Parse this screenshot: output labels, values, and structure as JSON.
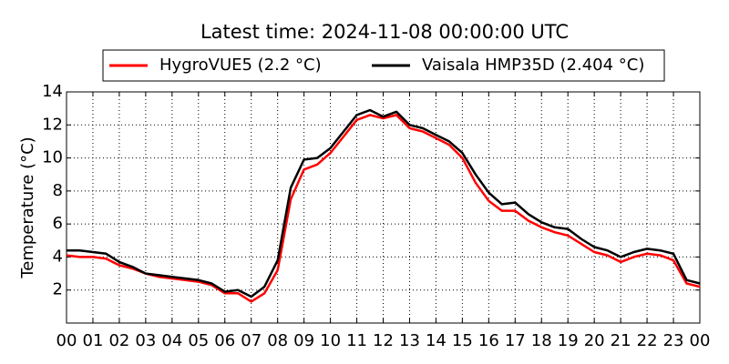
{
  "chart_data": {
    "type": "line",
    "title": "Latest time: 2024-11-08 00:00:00 UTC",
    "y_label": "Temperature (°C)",
    "x": [
      0,
      0.5,
      1,
      1.5,
      2,
      2.5,
      3,
      3.5,
      4,
      4.5,
      5,
      5.5,
      6,
      6.5,
      7,
      7.5,
      8,
      8.5,
      9,
      9.5,
      10,
      10.5,
      11,
      11.5,
      12,
      12.5,
      13,
      13.5,
      14,
      14.5,
      15,
      15.5,
      16,
      16.5,
      17,
      17.5,
      18,
      18.5,
      19,
      19.5,
      20,
      20.5,
      21,
      21.5,
      22,
      22.5,
      23,
      23.5,
      24
    ],
    "series": [
      {
        "name": "HygroVUE5 (2.2 °C)",
        "color": "#ff0000",
        "values": [
          4.1,
          4.0,
          4.0,
          3.9,
          3.5,
          3.3,
          3.0,
          2.8,
          2.7,
          2.6,
          2.5,
          2.3,
          1.8,
          1.8,
          1.3,
          1.8,
          3.2,
          7.5,
          9.3,
          9.6,
          10.3,
          11.3,
          12.3,
          12.6,
          12.4,
          12.6,
          11.8,
          11.6,
          11.2,
          10.8,
          10.0,
          8.5,
          7.4,
          6.8,
          6.8,
          6.2,
          5.8,
          5.5,
          5.3,
          4.8,
          4.3,
          4.1,
          3.7,
          4.0,
          4.2,
          4.1,
          3.8,
          2.4,
          2.2
        ]
      },
      {
        "name": "Vaisala HMP35D (2.404 °C)",
        "color": "#000000",
        "values": [
          4.4,
          4.4,
          4.3,
          4.2,
          3.7,
          3.4,
          3.0,
          2.9,
          2.8,
          2.7,
          2.6,
          2.4,
          1.9,
          2.0,
          1.6,
          2.2,
          3.8,
          8.2,
          9.9,
          10.0,
          10.6,
          11.6,
          12.6,
          12.9,
          12.5,
          12.8,
          12.0,
          11.8,
          11.4,
          11.0,
          10.3,
          9.0,
          7.9,
          7.2,
          7.3,
          6.6,
          6.1,
          5.8,
          5.7,
          5.1,
          4.6,
          4.4,
          4.0,
          4.3,
          4.5,
          4.4,
          4.2,
          2.6,
          2.4
        ]
      }
    ],
    "xlim": [
      0,
      24
    ],
    "xticks": [
      {
        "value": 0,
        "label": "00"
      },
      {
        "value": 1,
        "label": "01"
      },
      {
        "value": 2,
        "label": "02"
      },
      {
        "value": 3,
        "label": "03"
      },
      {
        "value": 4,
        "label": "04"
      },
      {
        "value": 5,
        "label": "05"
      },
      {
        "value": 6,
        "label": "06"
      },
      {
        "value": 7,
        "label": "07"
      },
      {
        "value": 8,
        "label": "08"
      },
      {
        "value": 9,
        "label": "09"
      },
      {
        "value": 10,
        "label": "10"
      },
      {
        "value": 11,
        "label": "11"
      },
      {
        "value": 12,
        "label": "12"
      },
      {
        "value": 13,
        "label": "13"
      },
      {
        "value": 14,
        "label": "14"
      },
      {
        "value": 15,
        "label": "15"
      },
      {
        "value": 16,
        "label": "16"
      },
      {
        "value": 17,
        "label": "17"
      },
      {
        "value": 18,
        "label": "18"
      },
      {
        "value": 19,
        "label": "19"
      },
      {
        "value": 20,
        "label": "20"
      },
      {
        "value": 21,
        "label": "21"
      },
      {
        "value": 22,
        "label": "22"
      },
      {
        "value": 23,
        "label": "23"
      },
      {
        "value": 24,
        "label": "00"
      }
    ],
    "ylim": [
      0,
      14
    ],
    "yticks": [
      2,
      4,
      6,
      8,
      10,
      12,
      14
    ],
    "grid": true,
    "legend": "top"
  }
}
